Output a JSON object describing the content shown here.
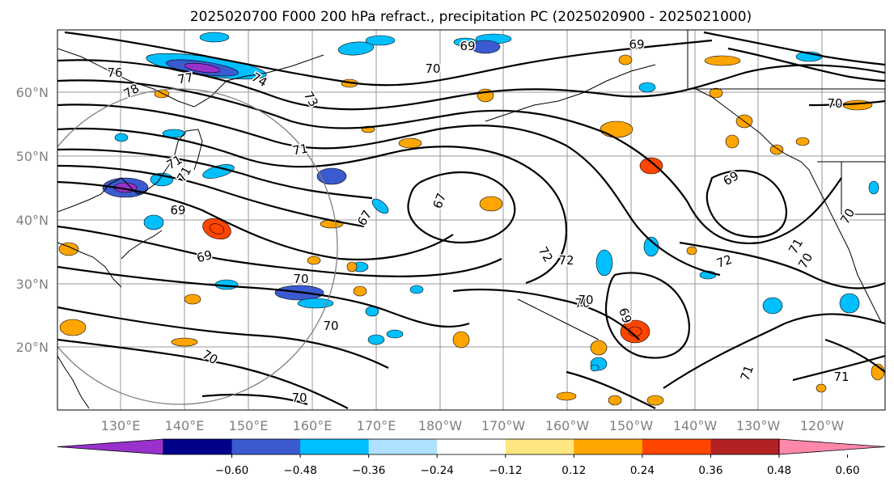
{
  "title": "2025020700 F000 200 hPa refract., precipitation PC (2025020900 - 2025021000)",
  "map": {
    "lat_labels": [
      "60°N",
      "50°N",
      "40°N",
      "30°N",
      "20°N"
    ],
    "lon_labels": [
      "130°E",
      "140°E",
      "150°E",
      "160°E",
      "170°E",
      "180°W",
      "170°W",
      "160°W",
      "150°W",
      "140°W",
      "130°W",
      "120°W"
    ],
    "contour_labels": [
      "69",
      "69",
      "70",
      "76",
      "77",
      "78",
      "74",
      "73",
      "71",
      "72",
      "70",
      "67",
      "67",
      "69",
      "69",
      "70",
      "71",
      "72",
      "71",
      "72",
      "70",
      "70",
      "69",
      "70",
      "70",
      "70",
      "71",
      "71",
      "71",
      "70",
      "70",
      "69"
    ]
  },
  "colorbar": {
    "colors": [
      "#9932cc",
      "#00008b",
      "#3a5bd0",
      "#00bfff",
      "#b0e0ff",
      "#ffffff",
      "#ffe680",
      "#ffa500",
      "#ff4500",
      "#b22222",
      "#ff88aa"
    ],
    "tick_labels": [
      "−0.60",
      "−0.48",
      "−0.36",
      "−0.24",
      "−0.12",
      "0.12",
      "0.24",
      "0.36",
      "0.48",
      "0.60"
    ],
    "extend": "both"
  },
  "shading": {
    "negative_colors": [
      "#00bfff",
      "#3a5bd0",
      "#9932cc"
    ],
    "positive_colors": [
      "#ffa500",
      "#ff4500"
    ]
  }
}
